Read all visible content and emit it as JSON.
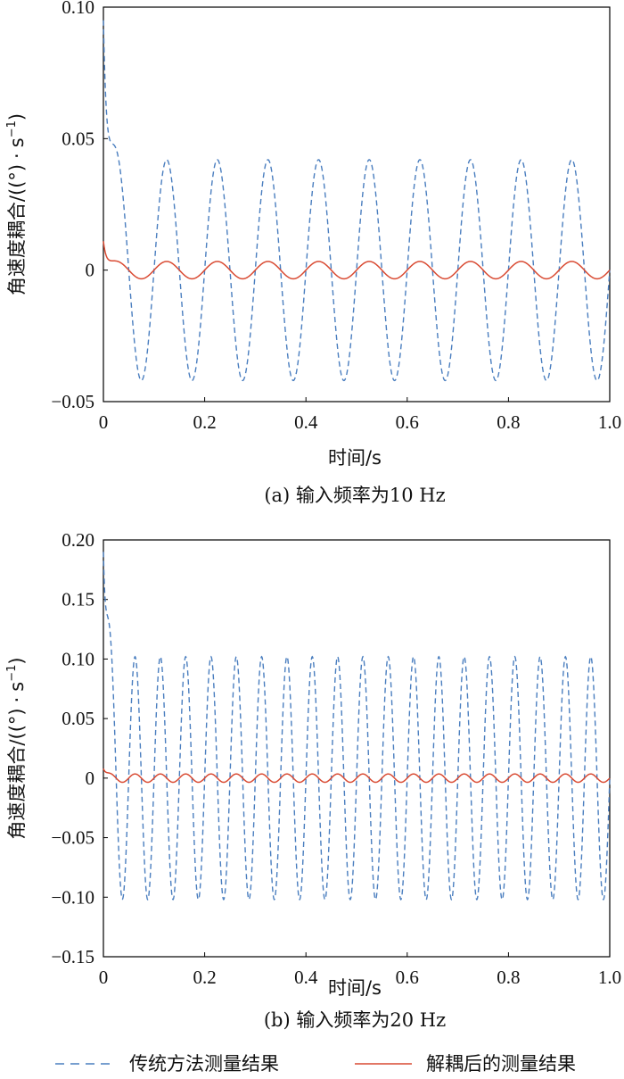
{
  "colors": {
    "traditional": "#4a7ebf",
    "decoupled": "#d94a32",
    "axis": "#000000"
  },
  "legend": {
    "traditional": "传统方法测量结果",
    "decoupled": "解耦后的测量结果"
  },
  "chart_data": [
    {
      "type": "line",
      "caption": "(a) 输入频率为10 Hz",
      "xlabel": "时间/s",
      "ylabel": "角速度耦合/((°)·s⁻¹)",
      "ylabel_parts": [
        "角速度耦合/((°)",
        "·",
        "s",
        "−1",
        ")"
      ],
      "xlim": [
        0,
        1.0
      ],
      "ylim": [
        -0.05,
        0.1
      ],
      "xticks": [
        0,
        0.2,
        0.4,
        0.6,
        0.8,
        1.0
      ],
      "xtick_labels": [
        "0",
        "0.2",
        "0.4",
        "0.6",
        "0.8",
        "1.0"
      ],
      "yticks": [
        -0.05,
        0,
        0.05,
        0.1
      ],
      "ytick_labels": [
        "−0.05",
        "0",
        "0.05",
        "0.10"
      ],
      "grid": false,
      "series": [
        {
          "name": "传统方法测量结果",
          "style": "dashed",
          "frequency_hz": 10,
          "amplitude": 0.042,
          "initial_peak": 0.095,
          "initial_decay_s": 0.008
        },
        {
          "name": "解耦后的测量结果",
          "style": "solid",
          "frequency_hz": 10,
          "amplitude": 0.0033,
          "initial_peak": 0.011,
          "initial_decay_s": 0.006
        }
      ]
    },
    {
      "type": "line",
      "caption": "(b) 输入频率为20 Hz",
      "xlabel": "时间/s",
      "ylabel": "角速度耦合/((°)·s⁻¹)",
      "ylabel_parts": [
        "角速度耦合/((°)",
        "·",
        "s",
        "−1",
        ")"
      ],
      "xlim": [
        0,
        1.0
      ],
      "ylim": [
        -0.15,
        0.2
      ],
      "xticks": [
        0,
        0.2,
        0.4,
        0.6,
        0.8,
        1.0
      ],
      "xtick_labels": [
        "0",
        "0.2",
        "0.4",
        "0.6",
        "0.8",
        "1.0"
      ],
      "yticks": [
        -0.15,
        -0.1,
        -0.05,
        0,
        0.05,
        0.1,
        0.15,
        0.2
      ],
      "ytick_labels": [
        "−0.15",
        "−0.10",
        "−0.05",
        "0",
        "0.05",
        "0.10",
        "0.15",
        "0.20"
      ],
      "grid": false,
      "series": [
        {
          "name": "传统方法测量结果",
          "style": "dashed",
          "frequency_hz": 20,
          "amplitude": 0.102,
          "initial_peak": 0.19,
          "initial_decay_s": 0.006
        },
        {
          "name": "解耦后的测量结果",
          "style": "solid",
          "frequency_hz": 20,
          "amplitude": 0.0035,
          "initial_peak": 0.008,
          "initial_decay_s": 0.005
        }
      ]
    }
  ]
}
